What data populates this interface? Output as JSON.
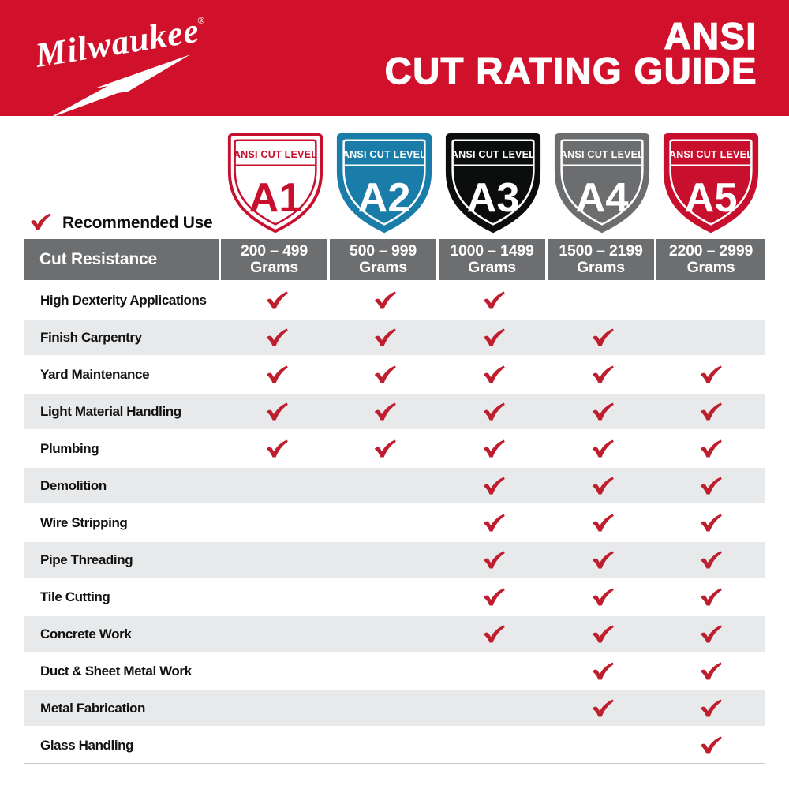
{
  "brand": {
    "logo_text": "Milwaukee",
    "registered_mark": "®"
  },
  "header": {
    "title_line1": "ANSI",
    "title_line2": "CUT RATING GUIDE",
    "bg_color": "#D1112B",
    "text_color": "#FFFFFF"
  },
  "badges": {
    "label": "ANSI CUT LEVEL",
    "items": [
      {
        "level": "A1",
        "bg": "#FFFFFF",
        "fg": "#C8102E",
        "border": "#C8102E"
      },
      {
        "level": "A2",
        "bg": "#1A7CA8",
        "fg": "#FFFFFF",
        "border": "#1A7CA8"
      },
      {
        "level": "A3",
        "bg": "#0B0C0C",
        "fg": "#FFFFFF",
        "border": "#0B0C0C"
      },
      {
        "level": "A4",
        "bg": "#6B6D6F",
        "fg": "#FFFFFF",
        "border": "#6B6D6F"
      },
      {
        "level": "A5",
        "bg": "#C8102E",
        "fg": "#FFFFFF",
        "border": "#C8102E"
      }
    ]
  },
  "legend": {
    "check_label": "Recommended Use",
    "check_color": "#BE1E2D"
  },
  "table": {
    "corner_header": "Cut Resistance",
    "column_headers": [
      {
        "range": "200 – 499",
        "unit": "Grams"
      },
      {
        "range": "500 – 999",
        "unit": "Grams"
      },
      {
        "range": "1000 – 1499",
        "unit": "Grams"
      },
      {
        "range": "1500 – 2199",
        "unit": "Grams"
      },
      {
        "range": "2200 – 2999",
        "unit": "Grams"
      }
    ],
    "rows": [
      {
        "label": "High Dexterity Applications",
        "checks": [
          true,
          true,
          true,
          false,
          false
        ]
      },
      {
        "label": "Finish Carpentry",
        "checks": [
          true,
          true,
          true,
          true,
          false
        ]
      },
      {
        "label": "Yard Maintenance",
        "checks": [
          true,
          true,
          true,
          true,
          true
        ]
      },
      {
        "label": "Light Material Handling",
        "checks": [
          true,
          true,
          true,
          true,
          true
        ]
      },
      {
        "label": "Plumbing",
        "checks": [
          true,
          true,
          true,
          true,
          true
        ]
      },
      {
        "label": "Demolition",
        "checks": [
          false,
          false,
          true,
          true,
          true
        ]
      },
      {
        "label": "Wire Stripping",
        "checks": [
          false,
          false,
          true,
          true,
          true
        ]
      },
      {
        "label": "Pipe Threading",
        "checks": [
          false,
          false,
          true,
          true,
          true
        ]
      },
      {
        "label": "Tile Cutting",
        "checks": [
          false,
          false,
          true,
          true,
          true
        ]
      },
      {
        "label": "Concrete Work",
        "checks": [
          false,
          false,
          true,
          true,
          true
        ]
      },
      {
        "label": "Duct & Sheet Metal Work",
        "checks": [
          false,
          false,
          false,
          true,
          true
        ]
      },
      {
        "label": "Metal Fabrication",
        "checks": [
          false,
          false,
          false,
          true,
          true
        ]
      },
      {
        "label": "Glass Handling",
        "checks": [
          false,
          false,
          false,
          false,
          true
        ]
      }
    ]
  },
  "chart_data": {
    "type": "table",
    "title": "ANSI CUT RATING GUIDE",
    "legend": "check mark = Recommended Use",
    "columns": [
      "Cut Resistance",
      "A1: 200 – 499 Grams",
      "A2: 500 – 999 Grams",
      "A3: 1000 – 1499 Grams",
      "A4: 1500 – 2199 Grams",
      "A5: 2200 – 2999 Grams"
    ],
    "rows": [
      {
        "application": "High Dexterity Applications",
        "recommended_levels": [
          "A1",
          "A2",
          "A3"
        ]
      },
      {
        "application": "Finish Carpentry",
        "recommended_levels": [
          "A1",
          "A2",
          "A3",
          "A4"
        ]
      },
      {
        "application": "Yard Maintenance",
        "recommended_levels": [
          "A1",
          "A2",
          "A3",
          "A4",
          "A5"
        ]
      },
      {
        "application": "Light Material Handling",
        "recommended_levels": [
          "A1",
          "A2",
          "A3",
          "A4",
          "A5"
        ]
      },
      {
        "application": "Plumbing",
        "recommended_levels": [
          "A1",
          "A2",
          "A3",
          "A4",
          "A5"
        ]
      },
      {
        "application": "Demolition",
        "recommended_levels": [
          "A3",
          "A4",
          "A5"
        ]
      },
      {
        "application": "Wire Stripping",
        "recommended_levels": [
          "A3",
          "A4",
          "A5"
        ]
      },
      {
        "application": "Pipe Threading",
        "recommended_levels": [
          "A3",
          "A4",
          "A5"
        ]
      },
      {
        "application": "Tile Cutting",
        "recommended_levels": [
          "A3",
          "A4",
          "A5"
        ]
      },
      {
        "application": "Concrete Work",
        "recommended_levels": [
          "A3",
          "A4",
          "A5"
        ]
      },
      {
        "application": "Duct & Sheet Metal Work",
        "recommended_levels": [
          "A4",
          "A5"
        ]
      },
      {
        "application": "Metal Fabrication",
        "recommended_levels": [
          "A4",
          "A5"
        ]
      },
      {
        "application": "Glass Handling",
        "recommended_levels": [
          "A5"
        ]
      }
    ]
  }
}
